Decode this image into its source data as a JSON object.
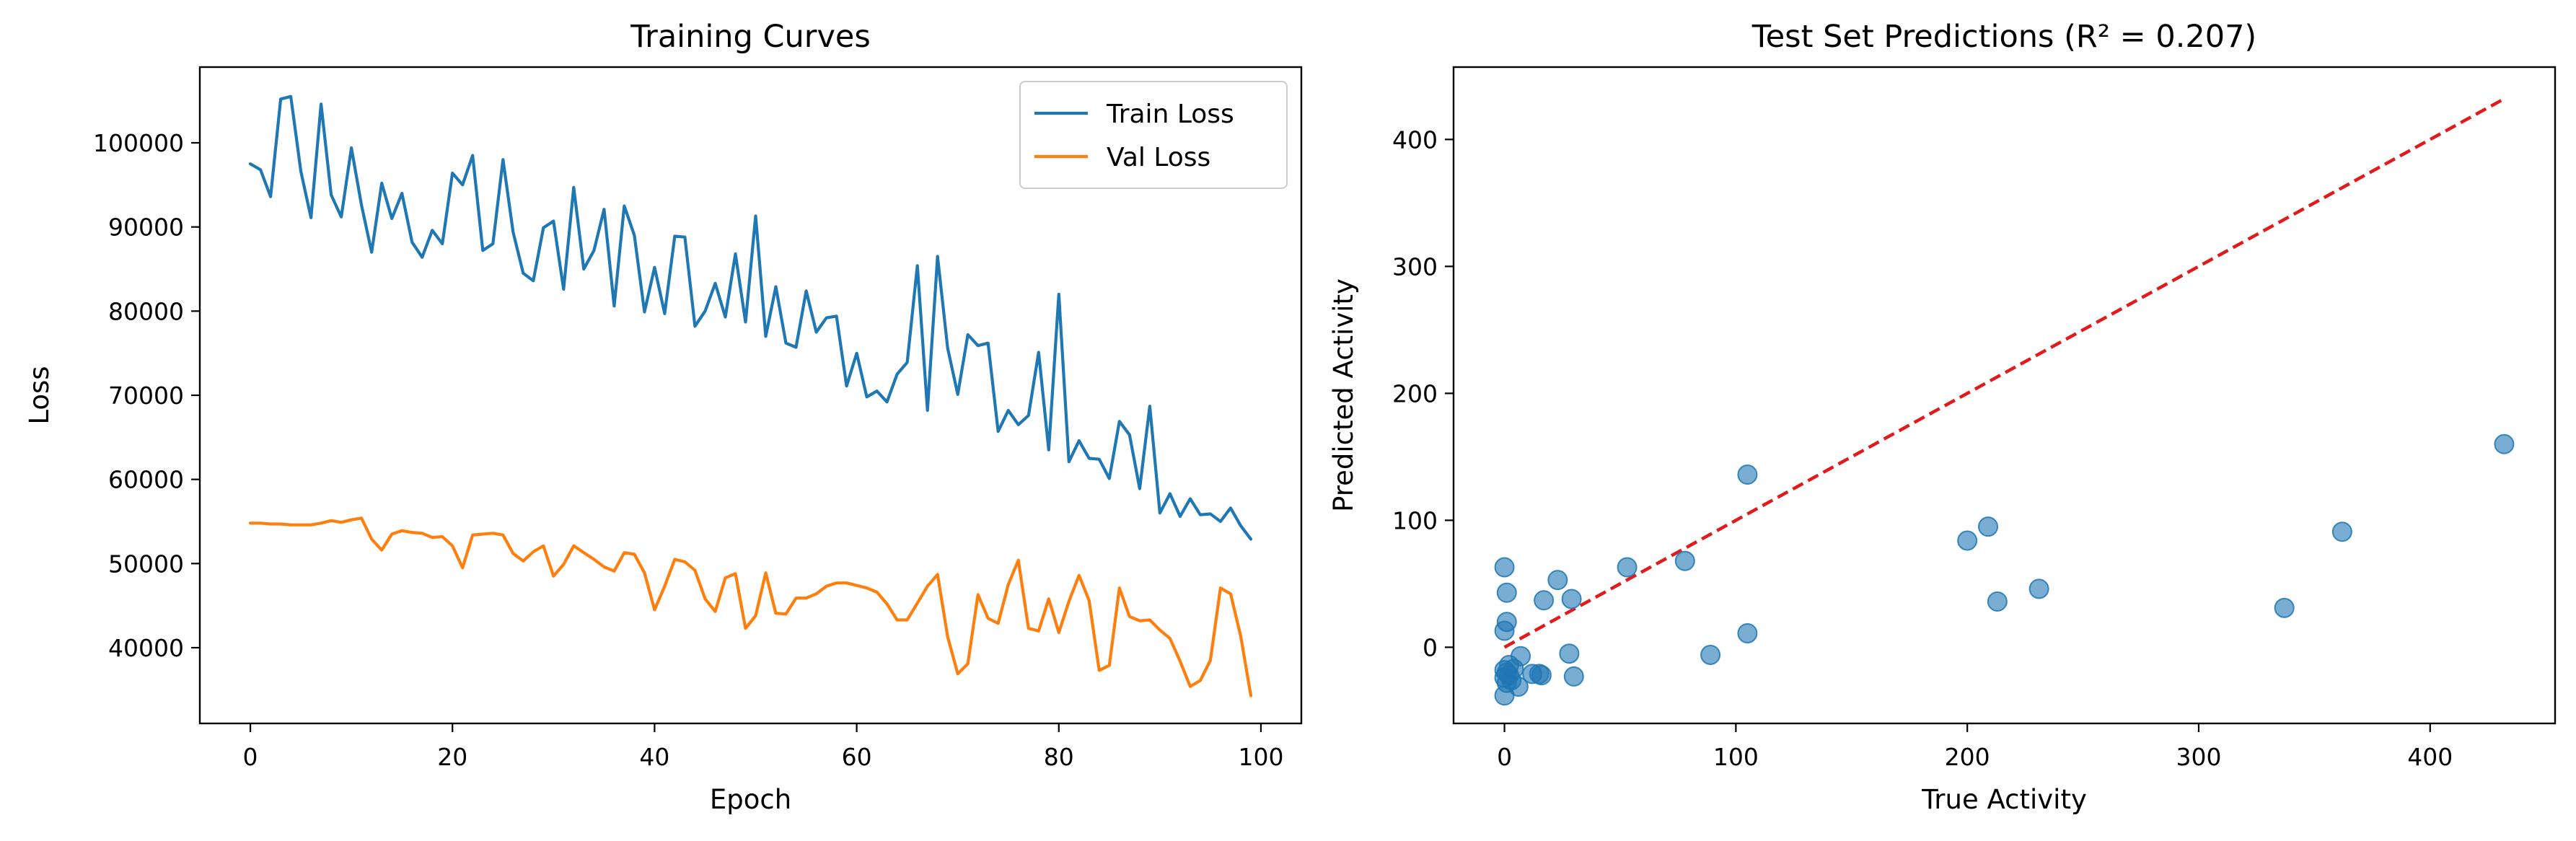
{
  "chart_data": [
    {
      "type": "line",
      "title": "Training Curves",
      "xlabel": "Epoch",
      "ylabel": "Loss",
      "xlim": [
        -5,
        104
      ],
      "ylim": [
        31000,
        109000
      ],
      "xticks": [
        0,
        20,
        40,
        60,
        80,
        100
      ],
      "yticks": [
        40000,
        50000,
        60000,
        70000,
        80000,
        90000,
        100000
      ],
      "grid": false,
      "legend": "top-right",
      "x": [
        0,
        1,
        2,
        3,
        4,
        5,
        6,
        7,
        8,
        9,
        10,
        11,
        12,
        13,
        14,
        15,
        16,
        17,
        18,
        19,
        20,
        21,
        22,
        23,
        24,
        25,
        26,
        27,
        28,
        29,
        30,
        31,
        32,
        33,
        34,
        35,
        36,
        37,
        38,
        39,
        40,
        41,
        42,
        43,
        44,
        45,
        46,
        47,
        48,
        49,
        50,
        51,
        52,
        53,
        54,
        55,
        56,
        57,
        58,
        59,
        60,
        61,
        62,
        63,
        64,
        65,
        66,
        67,
        68,
        69,
        70,
        71,
        72,
        73,
        74,
        75,
        76,
        77,
        78,
        79,
        80,
        81,
        82,
        83,
        84,
        85,
        86,
        87,
        88,
        89,
        90,
        91,
        92,
        93,
        94,
        95,
        96,
        97,
        98,
        99
      ],
      "series": [
        {
          "name": "Train Loss",
          "color": "#1f77b4",
          "values": [
            97500,
            96800,
            93600,
            105200,
            105500,
            96600,
            91100,
            104600,
            93800,
            91200,
            99400,
            92600,
            87000,
            95200,
            91000,
            94000,
            88200,
            86400,
            89600,
            88000,
            96400,
            95000,
            98500,
            87200,
            88000,
            98000,
            89400,
            84500,
            83600,
            89900,
            90700,
            82600,
            94700,
            85000,
            87200,
            92100,
            80600,
            92500,
            89000,
            79900,
            85200,
            79700,
            88900,
            88800,
            78200,
            80000,
            83300,
            79300,
            86800,
            78700,
            91300,
            77000,
            82900,
            76200,
            75700,
            82400,
            77500,
            79200,
            79400,
            71100,
            75000,
            69800,
            70500,
            69200,
            72500,
            73900,
            85400,
            68200,
            86500,
            75600,
            70100,
            77200,
            75900,
            76200,
            65700,
            68200,
            66500,
            67600,
            75100,
            63500,
            82000,
            62100,
            64600,
            62500,
            62400,
            60100,
            66900,
            65300,
            58900,
            68700,
            56000,
            58300,
            55600,
            57700,
            55800,
            55900,
            55000,
            56600,
            54500,
            52900
          ]
        },
        {
          "name": "Val Loss",
          "color": "#ff7f0e",
          "values": [
            54800,
            54800,
            54700,
            54700,
            54600,
            54600,
            54600,
            54800,
            55100,
            54900,
            55200,
            55400,
            52900,
            51600,
            53500,
            53900,
            53700,
            53600,
            53100,
            53200,
            52100,
            49500,
            53400,
            53500,
            53600,
            53400,
            51200,
            50300,
            51400,
            52100,
            48500,
            49900,
            52100,
            51300,
            50500,
            49600,
            49100,
            51300,
            51100,
            48900,
            44500,
            47300,
            50500,
            50200,
            49200,
            45800,
            44300,
            48300,
            48800,
            42300,
            43800,
            48900,
            44100,
            44000,
            45900,
            45900,
            46400,
            47300,
            47700,
            47700,
            47400,
            47100,
            46600,
            45200,
            43300,
            43300,
            45300,
            47300,
            48700,
            41300,
            36900,
            38100,
            46300,
            43500,
            42900,
            47500,
            50400,
            42300,
            42000,
            45800,
            41800,
            45500,
            48600,
            45600,
            37300,
            37900,
            47100,
            43700,
            43200,
            43300,
            42100,
            41100,
            38400,
            35400,
            36100,
            38500,
            47100,
            46400,
            41400,
            34300
          ]
        }
      ]
    },
    {
      "type": "scatter",
      "title": "Test Set Predictions (R² = 0.207)",
      "xlabel": "True Activity",
      "ylabel": "Predicted Activity",
      "xlim": [
        -22,
        454
      ],
      "ylim": [
        -60,
        457
      ],
      "xticks": [
        0,
        100,
        200,
        300,
        400
      ],
      "yticks": [
        0,
        100,
        200,
        300,
        400
      ],
      "grid": false,
      "point_color": "#1f77b4",
      "reference_line": {
        "from": [
          0,
          0
        ],
        "to": [
          432,
          432
        ],
        "color": "#e31a1c",
        "style": "dashed"
      },
      "points": [
        [
          0,
          63
        ],
        [
          1,
          43
        ],
        [
          1,
          20
        ],
        [
          0,
          13
        ],
        [
          2,
          -14
        ],
        [
          0,
          -18
        ],
        [
          1,
          -20
        ],
        [
          2,
          -22
        ],
        [
          0,
          -24
        ],
        [
          3,
          -26
        ],
        [
          1,
          -28
        ],
        [
          6,
          -31
        ],
        [
          0,
          -38
        ],
        [
          4,
          -17
        ],
        [
          7,
          -7
        ],
        [
          12,
          -21
        ],
        [
          15,
          -21
        ],
        [
          16,
          -22
        ],
        [
          17,
          37
        ],
        [
          23,
          53
        ],
        [
          28,
          -5
        ],
        [
          29,
          38
        ],
        [
          30,
          -23
        ],
        [
          53,
          63
        ],
        [
          78,
          68
        ],
        [
          89,
          -6
        ],
        [
          105,
          136
        ],
        [
          105,
          11
        ],
        [
          200,
          84
        ],
        [
          209,
          95
        ],
        [
          213,
          36
        ],
        [
          231,
          46
        ],
        [
          337,
          31
        ],
        [
          362,
          91
        ],
        [
          432,
          160
        ]
      ]
    }
  ]
}
